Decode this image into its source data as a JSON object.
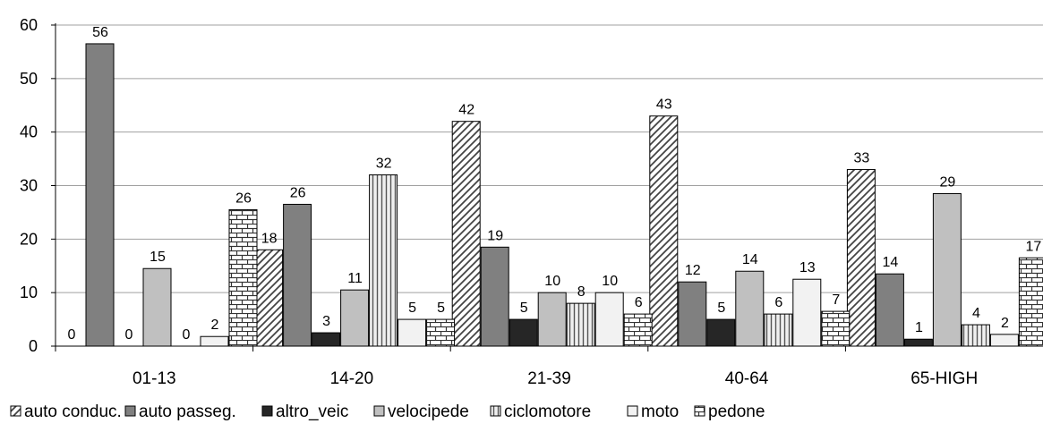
{
  "chart_data": {
    "type": "bar",
    "title": "",
    "xlabel": "",
    "ylabel": "",
    "ylim": [
      0,
      60
    ],
    "yticks": [
      0,
      10,
      20,
      30,
      40,
      50,
      60
    ],
    "grid": true,
    "legend_position": "bottom",
    "categories": [
      "01-13",
      "14-20",
      "21-39",
      "40-64",
      "65-HIGH"
    ],
    "series": [
      {
        "name": "auto conduc.",
        "values": [
          0,
          18,
          42,
          43,
          33
        ],
        "labels": [
          "0",
          "18",
          "42",
          "43",
          "33"
        ],
        "fill": "hatch-diagonal"
      },
      {
        "name": "auto passeg.",
        "values": [
          56.5,
          26.5,
          18.5,
          12,
          13.5
        ],
        "labels": [
          "56",
          "26",
          "19",
          "12",
          "14"
        ],
        "fill": "#808080"
      },
      {
        "name": "altro_veic",
        "values": [
          0,
          2.5,
          5,
          5,
          1.3
        ],
        "labels": [
          "0",
          "3",
          "5",
          "5",
          "1"
        ],
        "fill": "#262626"
      },
      {
        "name": "velocipede",
        "values": [
          14.5,
          10.5,
          10,
          14,
          28.5
        ],
        "labels": [
          "15",
          "11",
          "10",
          "14",
          "29"
        ],
        "fill": "#c0c0c0"
      },
      {
        "name": "ciclomotore",
        "values": [
          0,
          32,
          8,
          6,
          4
        ],
        "labels": [
          "0",
          "32",
          "8",
          "6",
          "4"
        ],
        "fill": "hatch-vertical"
      },
      {
        "name": "moto",
        "values": [
          1.8,
          5,
          10,
          12.5,
          2.2
        ],
        "labels": [
          "2",
          "5",
          "10",
          "13",
          "2"
        ],
        "fill": "#f2f2f2"
      },
      {
        "name": "pedone",
        "values": [
          25.5,
          5,
          6,
          6.5,
          16.5
        ],
        "labels": [
          "26",
          "5",
          "6",
          "7",
          "17"
        ],
        "fill": "hatch-brick"
      }
    ]
  },
  "colors": {
    "axis": "#000000",
    "grid": "#a0a0a0",
    "bar_stroke": "#000000",
    "hatch_line": "#444444"
  }
}
